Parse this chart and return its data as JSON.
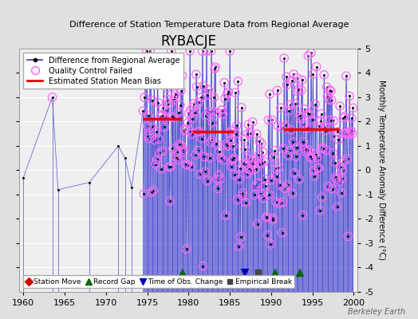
{
  "title": "RYBACJE",
  "subtitle": "Difference of Station Temperature Data from Regional Average",
  "ylabel": "Monthly Temperature Anomaly Difference (°C)",
  "xlim": [
    1959.5,
    2000.5
  ],
  "ylim": [
    -5,
    5
  ],
  "xticks": [
    1960,
    1965,
    1970,
    1975,
    1980,
    1985,
    1990,
    1995,
    2000
  ],
  "yticks_left": [
    -4,
    -3,
    -2,
    -1,
    0,
    1,
    2,
    3,
    4
  ],
  "yticks_right": [
    -5,
    -4,
    -3,
    -2,
    -1,
    0,
    1,
    2,
    3,
    4,
    5
  ],
  "background_color": "#e0e0e0",
  "plot_background": "#efefef",
  "grid_color": "#ffffff",
  "line_color": "#3333cc",
  "dot_color": "#111111",
  "qc_color": "#ff66ff",
  "bias_color": "#ee0000",
  "record_gap_color": "#006600",
  "obs_change_color": "#0000bb",
  "empirical_break_color": "#444444",
  "station_move_color": "#cc0000",
  "bias_segments": [
    {
      "x_start": 1974.5,
      "x_end": 1979.2,
      "y": 2.1
    },
    {
      "x_start": 1980.5,
      "x_end": 1985.5,
      "y": 1.6
    },
    {
      "x_start": 1991.5,
      "x_end": 1998.2,
      "y": 1.7
    }
  ],
  "record_gaps": [
    1979.3,
    1990.5,
    1993.5
  ],
  "obs_changes": [
    1986.8
  ],
  "empirical_breaks": [
    1988.5
  ],
  "watermark": "Berkeley Earth",
  "fig_width": 5.24,
  "fig_height": 4.0,
  "dpi": 100
}
